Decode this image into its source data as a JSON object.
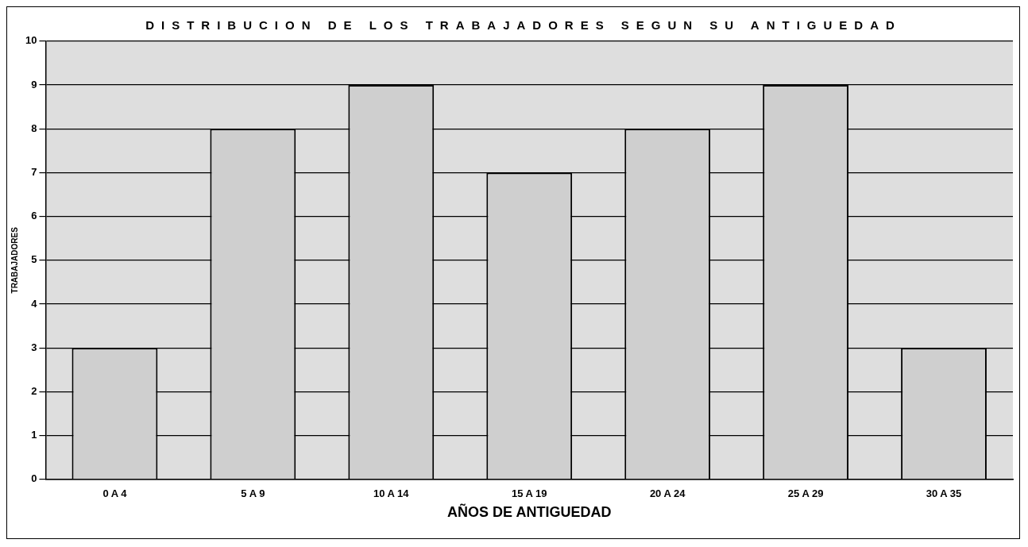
{
  "chart_data": {
    "type": "bar",
    "title": "DISTRIBUCION DE LOS TRABAJADORES SEGUN SU ANTIGUEDAD",
    "xlabel": "AÑOS DE ANTIGUEDAD",
    "ylabel": "TRABAJADORES",
    "categories": [
      "0 A 4",
      "5 A 9",
      "10 A 14",
      "15 A 19",
      "20 A 24",
      "25 A 29",
      "30 A 35"
    ],
    "values": [
      3,
      8,
      9,
      7,
      8,
      9,
      3
    ],
    "color": "#cfcfcf",
    "ylim": [
      0,
      10
    ],
    "yticks": [
      0,
      1,
      2,
      3,
      4,
      5,
      6,
      7,
      8,
      9,
      10
    ],
    "grid": "y",
    "legend": false
  }
}
